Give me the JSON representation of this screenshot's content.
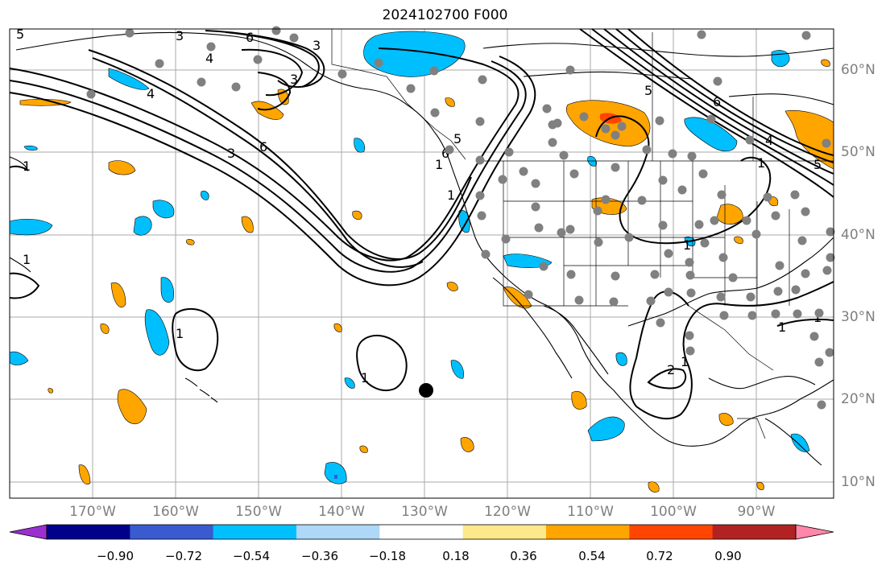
{
  "title": "2024102700 F000",
  "lon_labels": [
    "170°W",
    "160°W",
    "150°W",
    "140°W",
    "130°W",
    "120°W",
    "110°W",
    "100°W",
    "90°W"
  ],
  "lat_labels": [
    "60°N",
    "50°N",
    "40°N",
    "30°N",
    "20°N",
    "10°N"
  ],
  "contour_labels": [
    "5",
    "3",
    "6",
    "4",
    "3",
    "3",
    "6",
    "3",
    "5",
    "6",
    "1",
    "1",
    "1",
    "1",
    "1",
    "1",
    "4",
    "1",
    "1",
    "1",
    "1",
    "2",
    "1",
    "6",
    "5",
    "4",
    "5"
  ],
  "colorbar": {
    "ticks": [
      "−0.90",
      "−0.72",
      "−0.54",
      "−0.36",
      "−0.18",
      "0.18",
      "0.36",
      "0.54",
      "0.72",
      "0.90"
    ],
    "colors": [
      "#9b30d0",
      "#00008b",
      "#3a5bd0",
      "#00bfff",
      "#add8f7",
      "#ffffff",
      "#fde88a",
      "#ffa500",
      "#ff4500",
      "#b22222",
      "#ff88aa"
    ]
  },
  "legend_colors": {
    "positive": "#ffa500",
    "negative": "#00bfff",
    "station": "#808080",
    "marker": "#000000"
  }
}
